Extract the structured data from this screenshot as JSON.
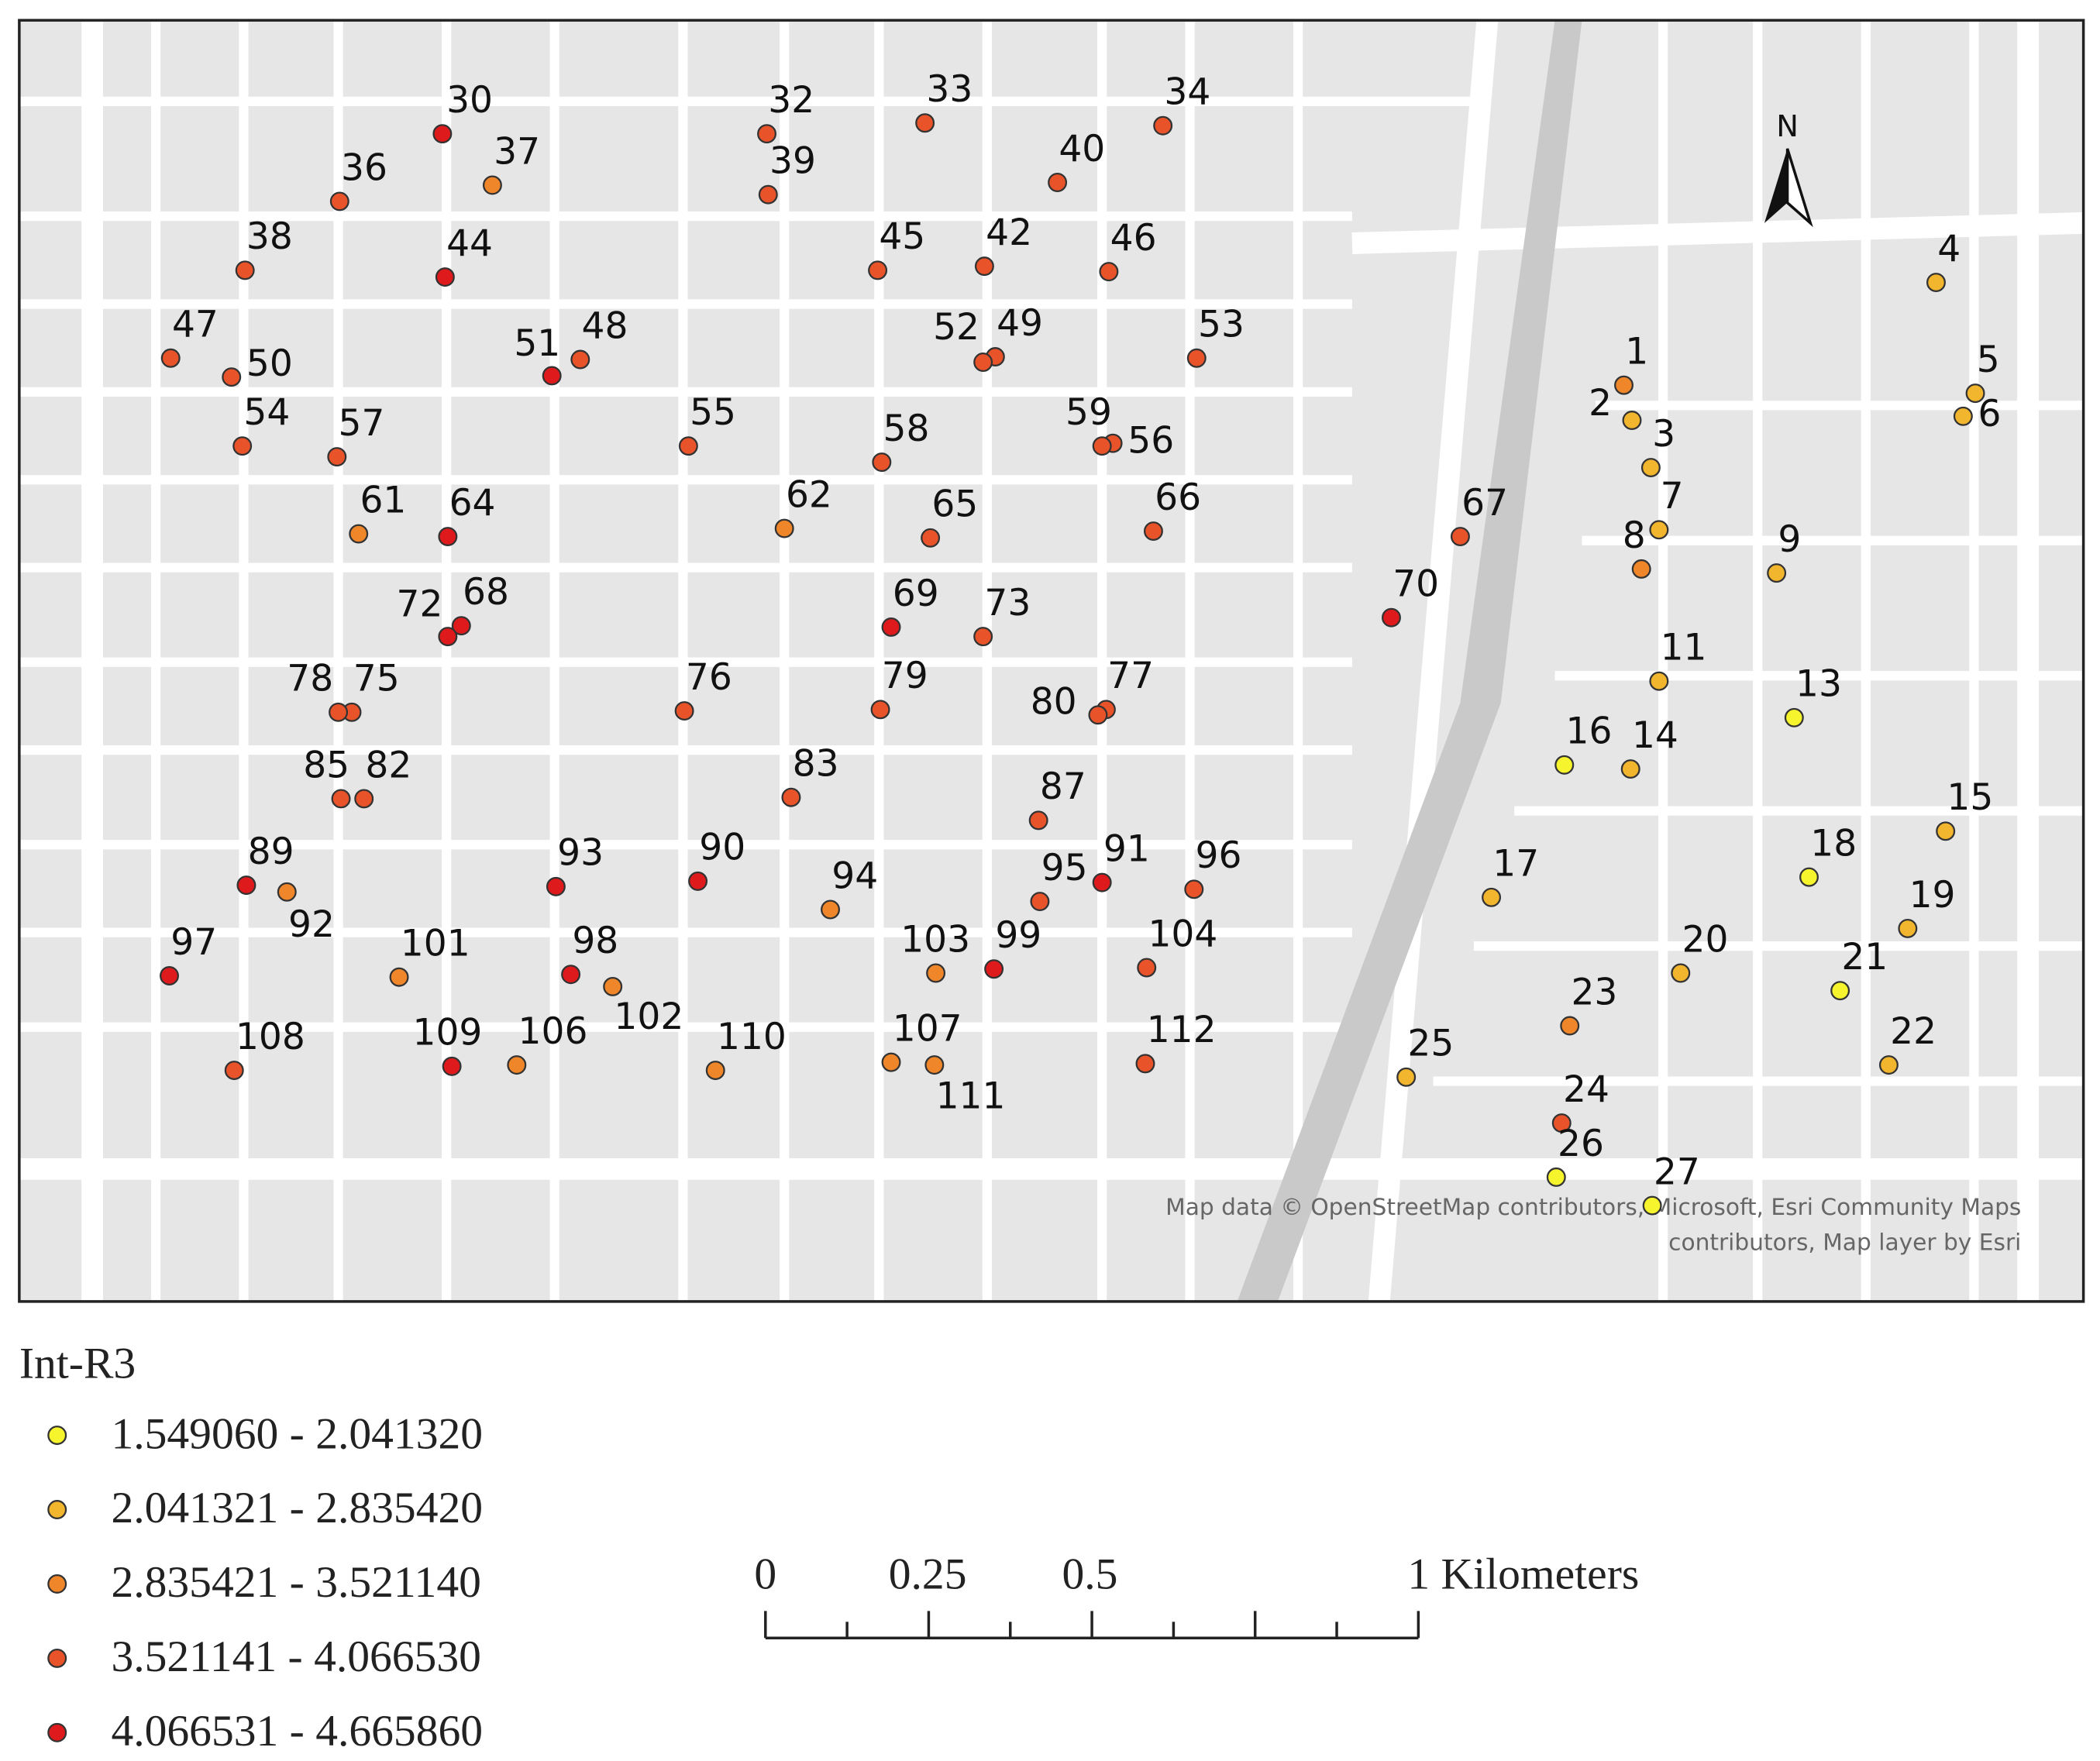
{
  "legend": {
    "title": "Int-R3",
    "classes": [
      {
        "label": "1.549060 - 2.041320",
        "color": "#f6f42c"
      },
      {
        "label": "2.041321 - 2.835420",
        "color": "#f2b52e"
      },
      {
        "label": "2.835421 - 3.521140",
        "color": "#f0862a"
      },
      {
        "label": "3.521141 - 4.066530",
        "color": "#e8532a"
      },
      {
        "label": "4.066531 - 4.665860",
        "color": "#de1a1c"
      }
    ]
  },
  "scale_bar": {
    "labels": [
      "0",
      "0.25",
      "0.5",
      "1 Kilometers"
    ]
  },
  "north_label": "N",
  "attribution": [
    "Map data © OpenStreetMap contributors, Microsoft, Esri Community Maps",
    "contributors, Map layer by Esri"
  ],
  "points": [
    {
      "label": "30",
      "color": "#de1a1c"
    },
    {
      "label": "32",
      "color": "#e8532a"
    },
    {
      "label": "33",
      "color": "#e8532a"
    },
    {
      "label": "34",
      "color": "#e8532a"
    },
    {
      "label": "36",
      "color": "#e8532a"
    },
    {
      "label": "37",
      "color": "#f0862a"
    },
    {
      "label": "38",
      "color": "#e8532a"
    },
    {
      "label": "39",
      "color": "#e8532a"
    },
    {
      "label": "40",
      "color": "#e8532a"
    },
    {
      "label": "42",
      "color": "#e8532a"
    },
    {
      "label": "44",
      "color": "#de1a1c"
    },
    {
      "label": "45",
      "color": "#e8532a"
    },
    {
      "label": "46",
      "color": "#e8532a"
    },
    {
      "label": "47",
      "color": "#e8532a"
    },
    {
      "label": "48",
      "color": "#e8532a"
    },
    {
      "label": "49",
      "color": "#e8532a"
    },
    {
      "label": "50",
      "color": "#e8532a"
    },
    {
      "label": "51",
      "color": "#de1a1c"
    },
    {
      "label": "52",
      "color": "#e8532a"
    },
    {
      "label": "53",
      "color": "#e8532a"
    },
    {
      "label": "54",
      "color": "#e8532a"
    },
    {
      "label": "55",
      "color": "#e8532a"
    },
    {
      "label": "56",
      "color": "#e8532a"
    },
    {
      "label": "57",
      "color": "#e8532a"
    },
    {
      "label": "58",
      "color": "#e8532a"
    },
    {
      "label": "59",
      "color": "#e8532a"
    },
    {
      "label": "61",
      "color": "#f0862a"
    },
    {
      "label": "62",
      "color": "#f0862a"
    },
    {
      "label": "64",
      "color": "#de1a1c"
    },
    {
      "label": "65",
      "color": "#e8532a"
    },
    {
      "label": "66",
      "color": "#e8532a"
    },
    {
      "label": "67",
      "color": "#e8532a"
    },
    {
      "label": "68",
      "color": "#de1a1c"
    },
    {
      "label": "69",
      "color": "#de1a1c"
    },
    {
      "label": "70",
      "color": "#de1a1c"
    },
    {
      "label": "72",
      "color": "#de1a1c"
    },
    {
      "label": "73",
      "color": "#e8532a"
    },
    {
      "label": "75",
      "color": "#e8532a"
    },
    {
      "label": "76",
      "color": "#e8532a"
    },
    {
      "label": "77",
      "color": "#e8532a"
    },
    {
      "label": "78",
      "color": "#e8532a"
    },
    {
      "label": "79",
      "color": "#e8532a"
    },
    {
      "label": "80",
      "color": "#e8532a"
    },
    {
      "label": "82",
      "color": "#e8532a"
    },
    {
      "label": "83",
      "color": "#e8532a"
    },
    {
      "label": "85",
      "color": "#e8532a"
    },
    {
      "label": "87",
      "color": "#e8532a"
    },
    {
      "label": "89",
      "color": "#de1a1c"
    },
    {
      "label": "90",
      "color": "#de1a1c"
    },
    {
      "label": "91",
      "color": "#de1a1c"
    },
    {
      "label": "92",
      "color": "#f0862a"
    },
    {
      "label": "93",
      "color": "#de1a1c"
    },
    {
      "label": "94",
      "color": "#f0862a"
    },
    {
      "label": "95",
      "color": "#e8532a"
    },
    {
      "label": "96",
      "color": "#e8532a"
    },
    {
      "label": "97",
      "color": "#de1a1c"
    },
    {
      "label": "98",
      "color": "#de1a1c"
    },
    {
      "label": "99",
      "color": "#de1a1c"
    },
    {
      "label": "101",
      "color": "#f0862a"
    },
    {
      "label": "102",
      "color": "#f0862a"
    },
    {
      "label": "103",
      "color": "#f0862a"
    },
    {
      "label": "104",
      "color": "#e8532a"
    },
    {
      "label": "106",
      "color": "#f0862a"
    },
    {
      "label": "107",
      "color": "#f0862a"
    },
    {
      "label": "108",
      "color": "#e8532a"
    },
    {
      "label": "109",
      "color": "#de1a1c"
    },
    {
      "label": "110",
      "color": "#f0862a"
    },
    {
      "label": "111",
      "color": "#f0862a"
    },
    {
      "label": "112",
      "color": "#e8532a"
    },
    {
      "label": "1",
      "color": "#f0862a"
    },
    {
      "label": "2",
      "color": "#f2b52e"
    },
    {
      "label": "3",
      "color": "#f2b52e"
    },
    {
      "label": "4",
      "color": "#f2b52e"
    },
    {
      "label": "5",
      "color": "#f2b52e"
    },
    {
      "label": "6",
      "color": "#f2b52e"
    },
    {
      "label": "7",
      "color": "#f2b52e"
    },
    {
      "label": "8",
      "color": "#f0862a"
    },
    {
      "label": "9",
      "color": "#f2b52e"
    },
    {
      "label": "11",
      "color": "#f2b52e"
    },
    {
      "label": "13",
      "color": "#f6f42c"
    },
    {
      "label": "14",
      "color": "#f2b52e"
    },
    {
      "label": "15",
      "color": "#f2b52e"
    },
    {
      "label": "16",
      "color": "#f6f42c"
    },
    {
      "label": "17",
      "color": "#f2b52e"
    },
    {
      "label": "18",
      "color": "#f6f42c"
    },
    {
      "label": "19",
      "color": "#f2b52e"
    },
    {
      "label": "20",
      "color": "#f2b52e"
    },
    {
      "label": "21",
      "color": "#f6f42c"
    },
    {
      "label": "22",
      "color": "#f2b52e"
    },
    {
      "label": "23",
      "color": "#f0862a"
    },
    {
      "label": "24",
      "color": "#e8532a"
    },
    {
      "label": "25",
      "color": "#f2b52e"
    },
    {
      "label": "26",
      "color": "#f6f42c"
    },
    {
      "label": "27",
      "color": "#f6f42c"
    }
  ]
}
